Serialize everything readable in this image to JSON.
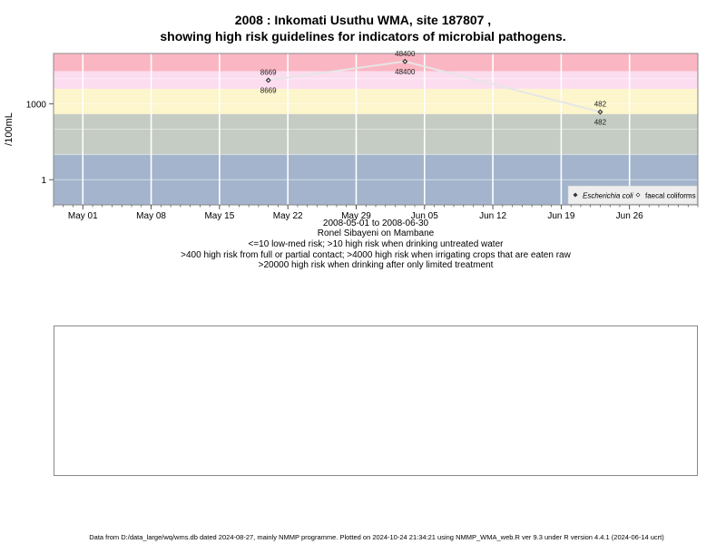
{
  "title_line1": "2008 : Inkomati Usuthu WMA, site 187807 ,",
  "title_line2": "showing high risk guidelines for indicators of microbial pathogens.",
  "subtitle_lines": [
    "2008-05-01 to 2008-06-30",
    "Ronel Sibayeni on Mambane",
    "<=10 low-med risk; >10 high risk when drinking untreated water",
    ">400 high risk from full or partial contact; >4000 high risk when irrigating crops that are eaten raw",
    ">20000 high risk when drinking after only limited treatment"
  ],
  "footer": "Data from D:/data_large/wq/wms.db dated 2024-08-27, mainly NMMP programme. Plotted on 2024-10-24 21:34:21 using NMMP_WMA_web.R ver 9.3 under R version 4.4.1 (2024-06-14 ucrt)",
  "chart_data": {
    "type": "line",
    "ylabel": "/100mL",
    "y_scale": "log10",
    "ylim": [
      0.1,
      100000
    ],
    "xlim": [
      "2008-04-28",
      "2008-07-03"
    ],
    "x_ticks": [
      {
        "date": "2008-05-01",
        "label": "May 01"
      },
      {
        "date": "2008-05-08",
        "label": "May 08"
      },
      {
        "date": "2008-05-15",
        "label": "May 15"
      },
      {
        "date": "2008-05-22",
        "label": "May 22"
      },
      {
        "date": "2008-05-29",
        "label": "May 29"
      },
      {
        "date": "2008-06-05",
        "label": "Jun 05"
      },
      {
        "date": "2008-06-12",
        "label": "Jun 12"
      },
      {
        "date": "2008-06-19",
        "label": "Jun 19"
      },
      {
        "date": "2008-06-26",
        "label": "Jun 26"
      }
    ],
    "y_ticks": [
      {
        "value": 1,
        "label": "1"
      },
      {
        "value": 1000,
        "label": "1000"
      }
    ],
    "grid": true,
    "risk_bands": [
      {
        "from": 0.1,
        "to": 10,
        "color": "#a3b4cc"
      },
      {
        "from": 10,
        "to": 400,
        "color": "#c5ccc3"
      },
      {
        "from": 400,
        "to": 4000,
        "color": "#fdf5cb"
      },
      {
        "from": 4000,
        "to": 20000,
        "color": "#fcdcef"
      },
      {
        "from": 20000,
        "to": 100000,
        "color": "#fbb6c3"
      }
    ],
    "series": [
      {
        "name": "Escherichia coli",
        "marker": "filled-diamond",
        "color": "#333333",
        "points": [
          {
            "x": "2008-05-20",
            "y": 8669,
            "label": "8669"
          },
          {
            "x": "2008-06-03",
            "y": 48400,
            "label": "48400"
          },
          {
            "x": "2008-06-23",
            "y": 482,
            "label": "482"
          }
        ]
      },
      {
        "name": "faecal coliforms",
        "marker": "open-diamond",
        "color": "#333333",
        "points": [
          {
            "x": "2008-05-20",
            "y": 8669,
            "label": "8669"
          },
          {
            "x": "2008-06-03",
            "y": 48400,
            "label": "48400"
          },
          {
            "x": "2008-06-23",
            "y": 482,
            "label": "482"
          }
        ]
      }
    ],
    "line_color": "#e6e6e6",
    "legend_position": "bottom-right"
  }
}
